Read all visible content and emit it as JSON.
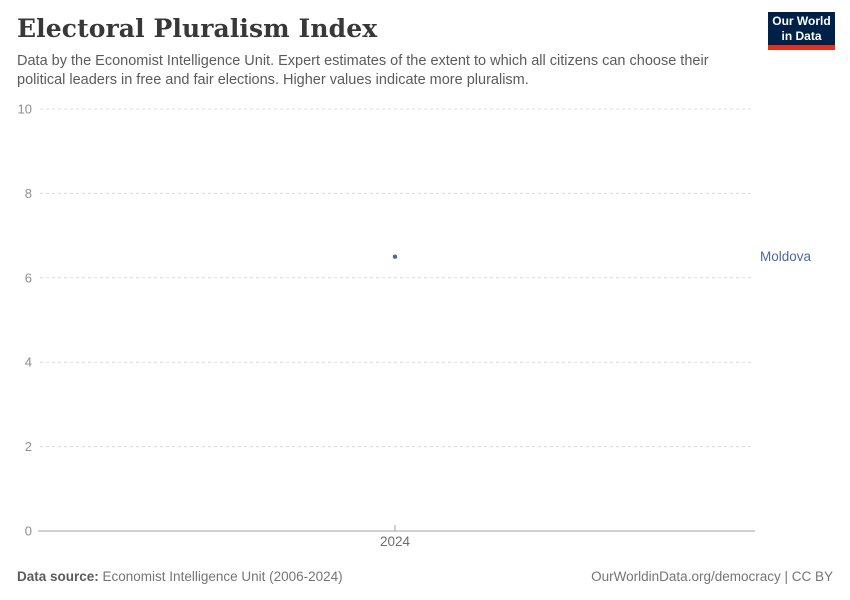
{
  "header": {
    "title": "Electoral Pluralism Index",
    "subtitle_line1": "Data by the Economist Intelligence Unit. Expert estimates of the extent to which all citizens can choose their",
    "subtitle_line2": "political leaders in free and fair elections. Higher values indicate more pluralism.",
    "logo": {
      "line1": "Our World",
      "line2": "in Data",
      "bg_color": "#002147",
      "accent_color": "#e0301e"
    }
  },
  "chart_data": {
    "type": "scatter",
    "title": "Electoral Pluralism Index",
    "xlabel": "",
    "ylabel": "",
    "grid": true,
    "ylim": [
      0,
      10
    ],
    "y_ticks": [
      0,
      2,
      4,
      6,
      8,
      10
    ],
    "x_ticks": [
      "2024"
    ],
    "series": [
      {
        "name": "Moldova",
        "x": [
          2024
        ],
        "values": [
          6.5
        ]
      }
    ],
    "entity_label": "Moldova",
    "point_color": "#4c6a9c",
    "entity_label_color": "#4c6a9c",
    "gridline_color": "#dcdcdc",
    "axis_line_color": "#a3a3a3",
    "y_tick_label_color": "#8f8f8f",
    "x_tick_label_color": "#6e6e6e"
  },
  "footer": {
    "source_label": "Data source:",
    "source_text": " Economist Intelligence Unit (2006-2024)",
    "link_text": "OurWorldinData.org/democracy | CC BY"
  }
}
